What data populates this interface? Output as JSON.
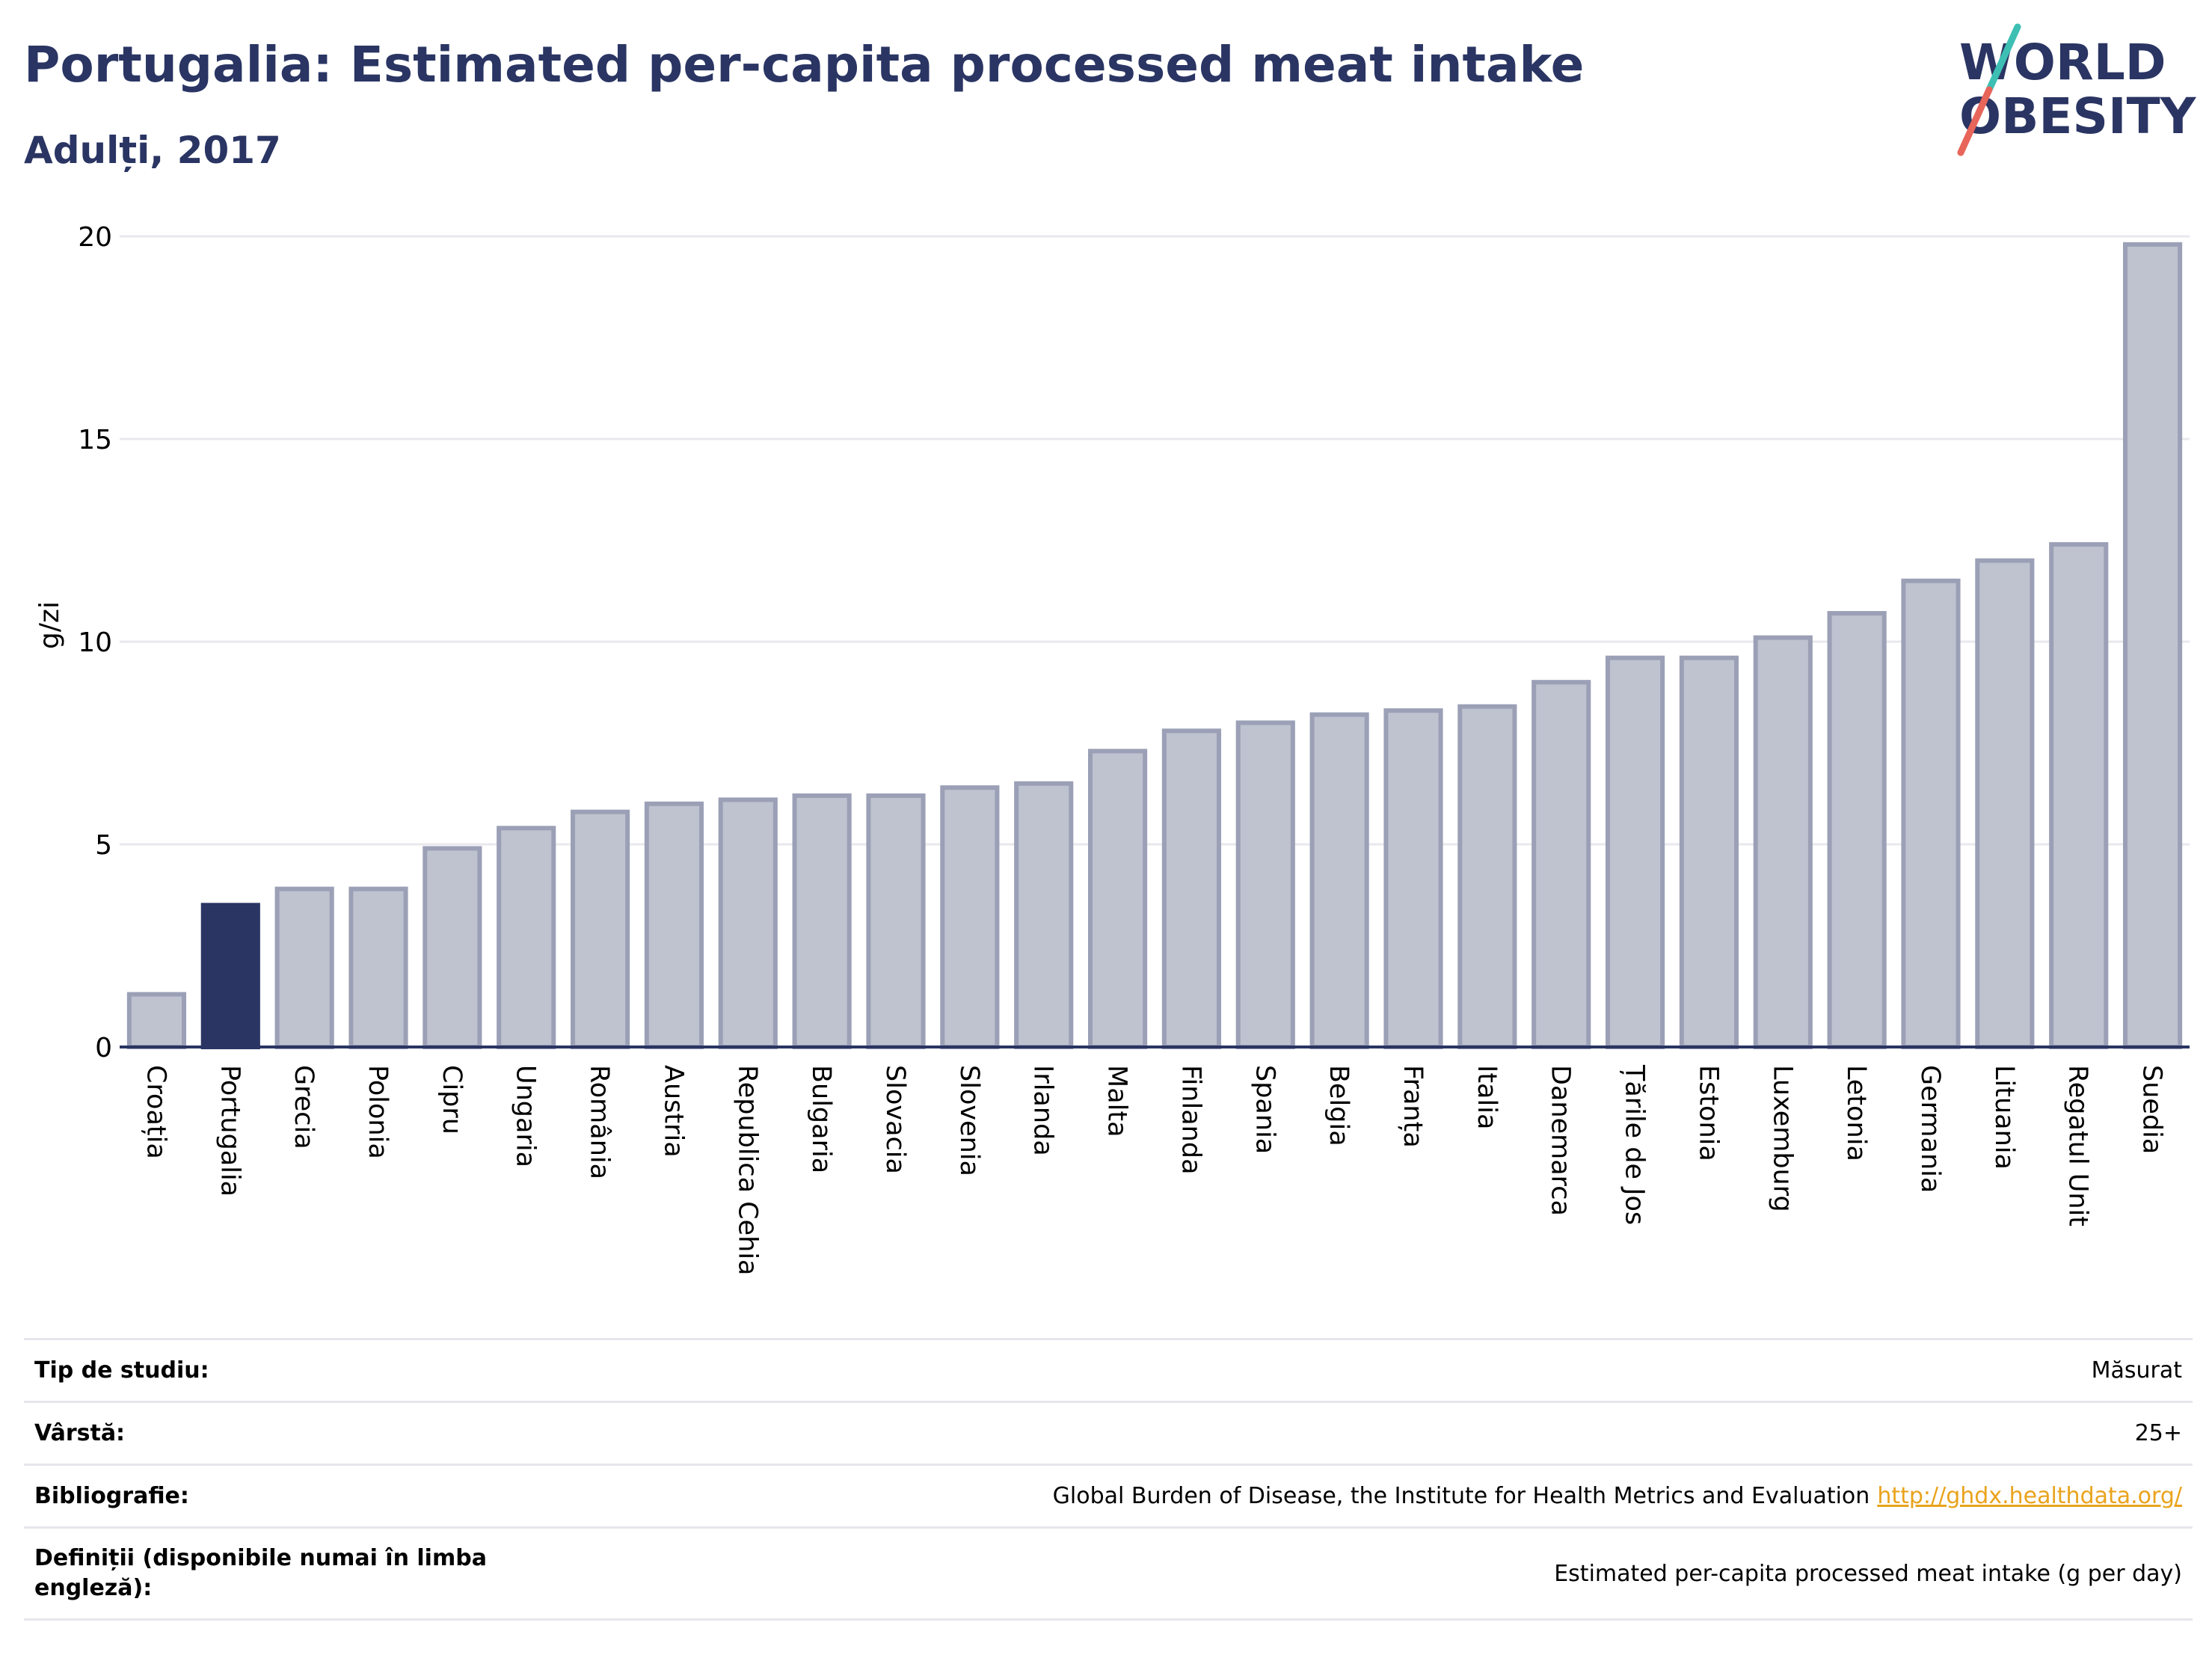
{
  "header": {
    "title": "Portugalia: Estimated per-capita processed meat intake",
    "subtitle": "Adulți, 2017"
  },
  "logo": {
    "line1": "WORLD",
    "line2": "OBESITY",
    "accent_colors": [
      "#3dbfb3",
      "#e8655a"
    ],
    "text_color": "#2a3563"
  },
  "colors": {
    "highlight_bar": "#2a3563",
    "other_bar_fill": "#bfc2cf",
    "other_bar_stroke": "#9ba0b6",
    "grid": "#e8e8ee",
    "axis": "#2a3563"
  },
  "chart_data": {
    "type": "bar",
    "title": "Portugalia: Estimated per-capita processed meat intake",
    "subtitle": "Adulți, 2017",
    "xlabel": "",
    "ylabel": "g/zi",
    "ylim": [
      0,
      20
    ],
    "yticks": [
      0,
      5,
      10,
      15,
      20
    ],
    "grid": true,
    "highlight": "Portugalia",
    "categories": [
      "Croația",
      "Portugalia",
      "Grecia",
      "Polonia",
      "Cipru",
      "Ungaria",
      "România",
      "Austria",
      "Republica Cehia",
      "Bulgaria",
      "Slovacia",
      "Slovenia",
      "Irlanda",
      "Malta",
      "Finlanda",
      "Spania",
      "Belgia",
      "Franța",
      "Italia",
      "Danemarca",
      "Țările de Jos",
      "Estonia",
      "Luxemburg",
      "Letonia",
      "Germania",
      "Lituania",
      "Regatul Unit",
      "Suedia"
    ],
    "values": [
      1.3,
      3.5,
      3.9,
      3.9,
      4.9,
      5.4,
      5.8,
      6.0,
      6.1,
      6.2,
      6.2,
      6.4,
      6.5,
      7.3,
      7.8,
      8.0,
      8.2,
      8.3,
      8.4,
      9.0,
      9.6,
      9.6,
      10.1,
      10.7,
      11.5,
      12.0,
      12.4,
      19.8
    ]
  },
  "meta": [
    {
      "label": "Tip de studiu:",
      "value": "Măsurat",
      "link": ""
    },
    {
      "label": "Vârstă:",
      "value": "25+",
      "link": ""
    },
    {
      "label": "Bibliografie:",
      "value": "Global Burden of Disease, the Institute for Health Metrics and Evaluation",
      "link": "http://ghdx.healthdata.org/"
    },
    {
      "label": "Definiții (disponibile numai în limba engleză):",
      "value": "Estimated per-capita processed meat intake (g per day)",
      "link": ""
    }
  ]
}
